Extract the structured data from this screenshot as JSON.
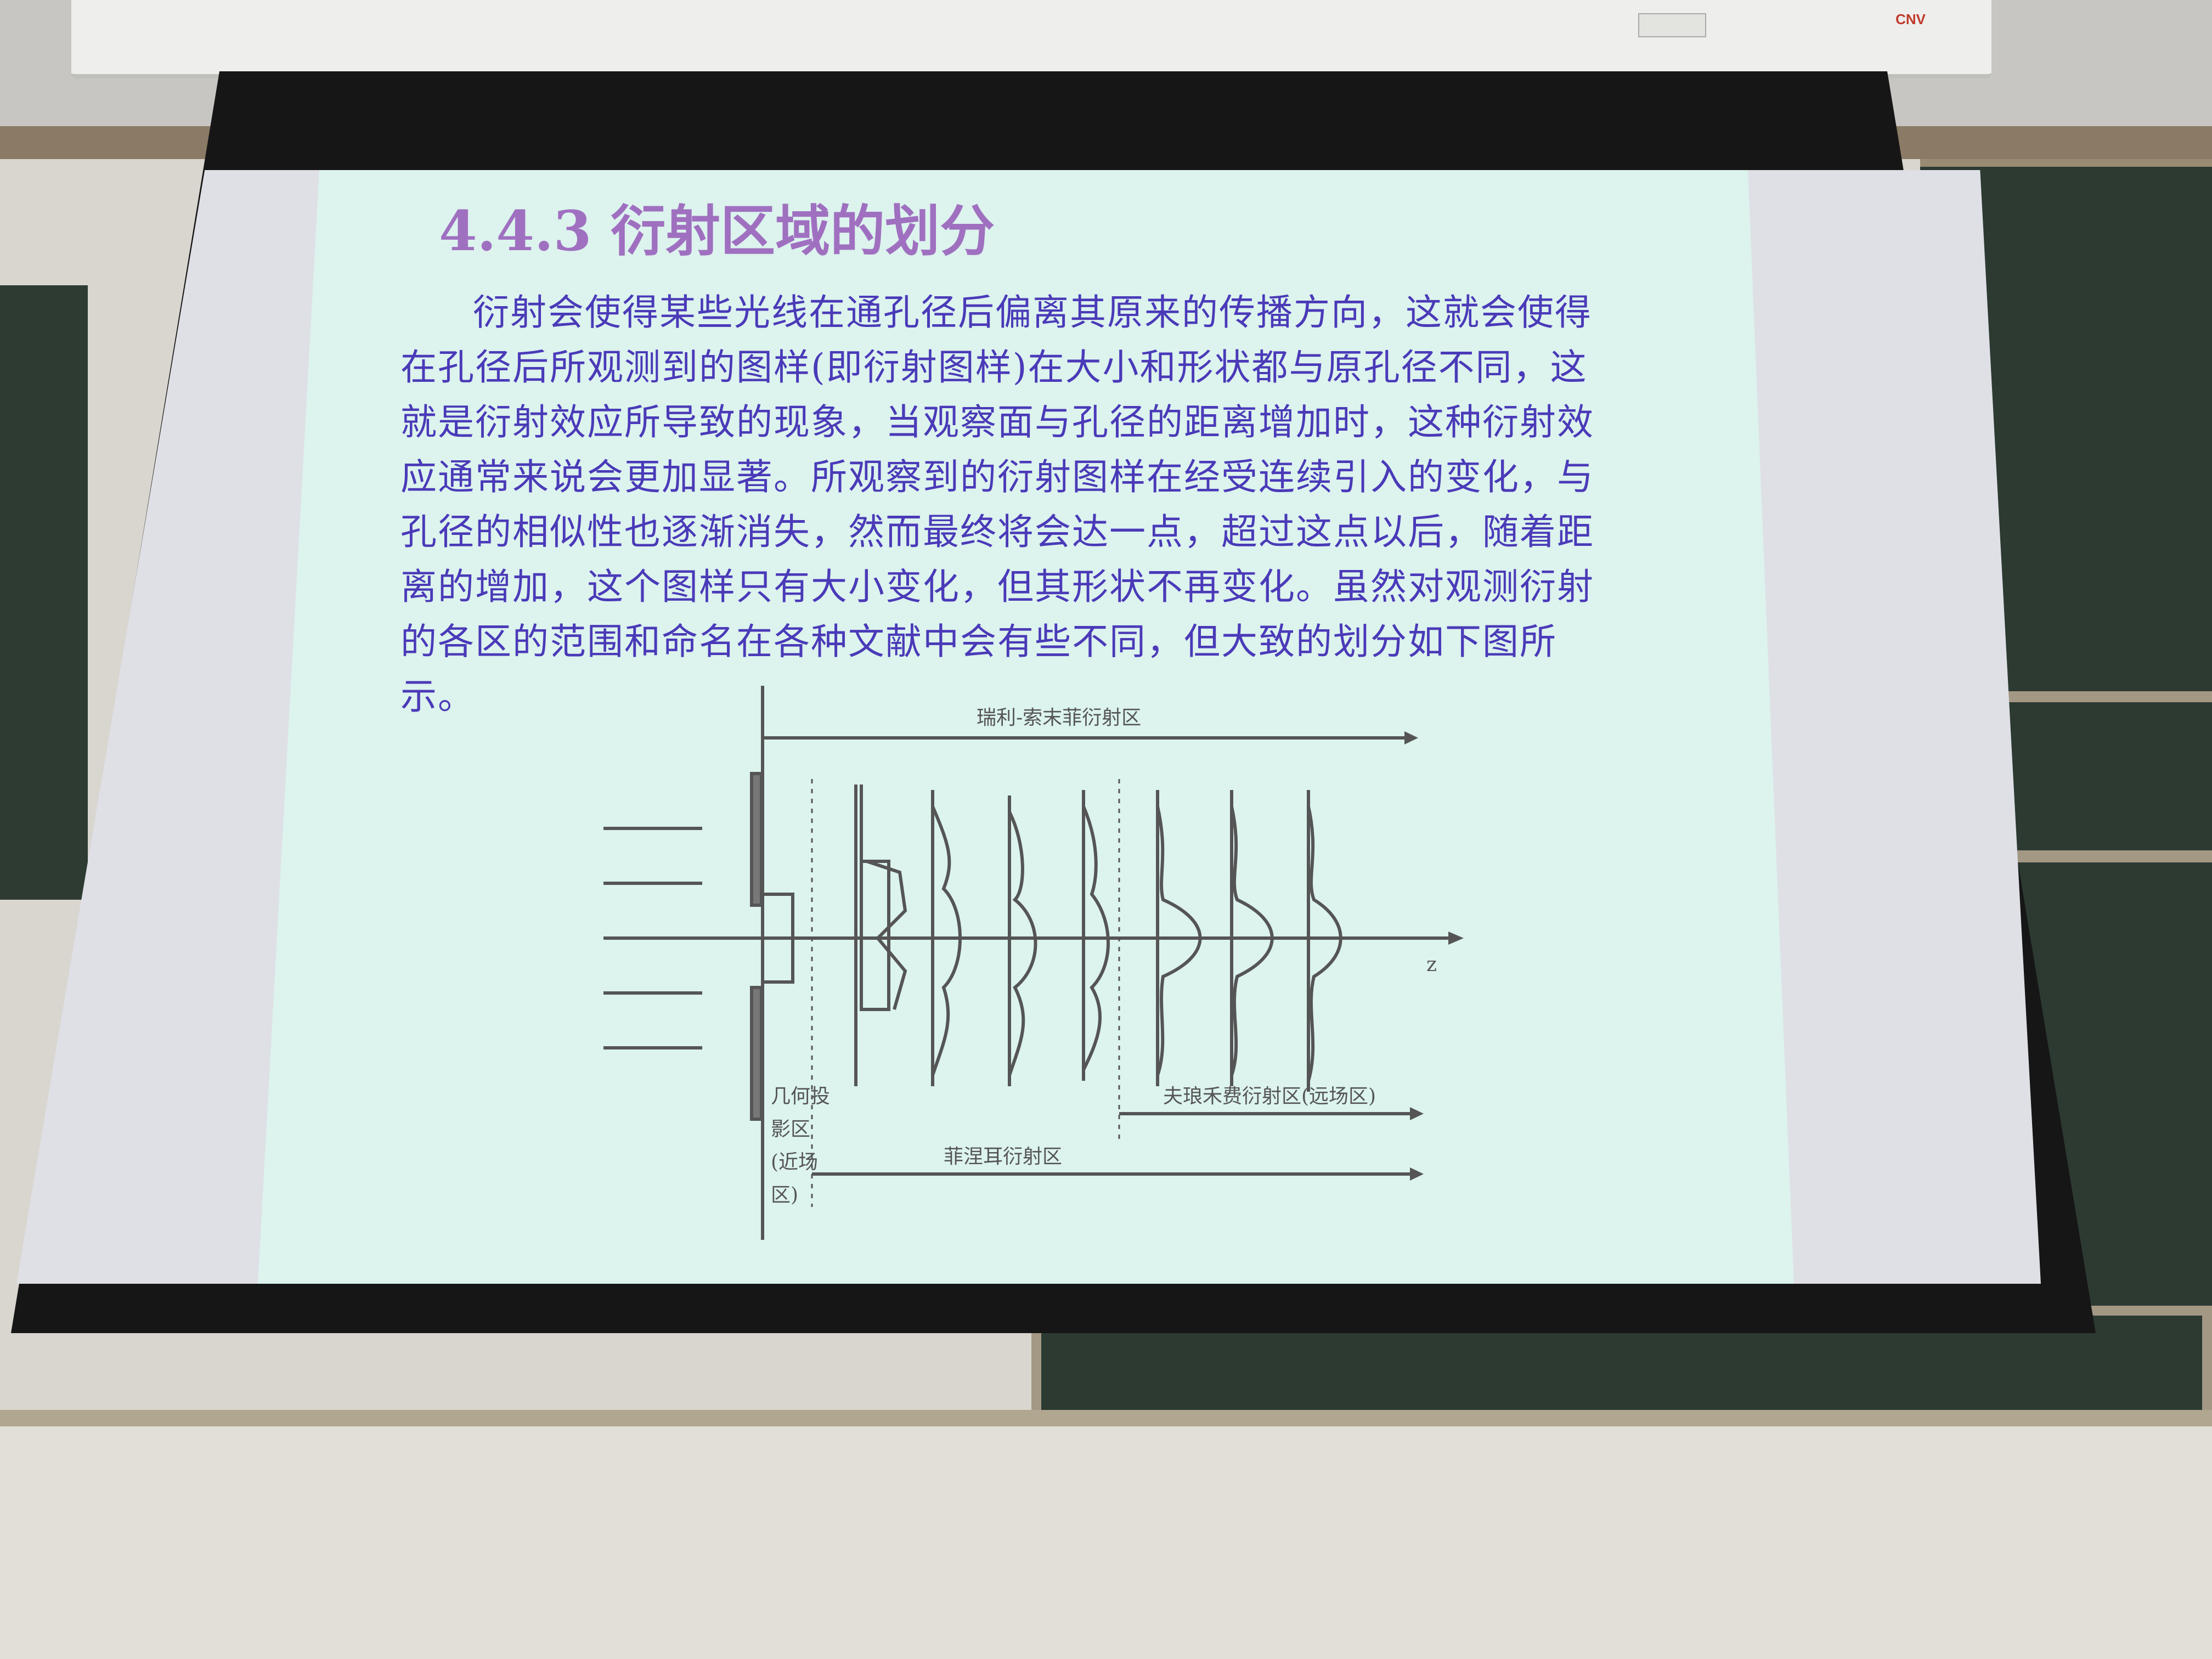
{
  "room": {
    "projector_brand": "CNV"
  },
  "slide": {
    "title": "4.4.3  衍射区域的划分",
    "body": "衍射会使得某些光线在通孔径后偏离其原来的传播方向，这就会使得在孔径后所观测到的图样(即衍射图样)在大小和形状都与原孔径不同，这就是衍射效应所导致的现象，当观察面与孔径的距离增加时，这种衍射效应通常来说会更加显著。所观察到的衍射图样在经受连续引入的变化，与孔径的相似性也逐渐消失，然而最终将会达一点，超过这点以后，随着距离的增加，这个图样只有大小变化，但其形状不再变化。虽然对观测衍射的各区的范围和命名在各种文献中会有些不同，但大致的划分如下图所示。",
    "diagram": {
      "top_label": "瑞利-索末菲衍射区",
      "axis_label": "z",
      "geo_label_lines": [
        "几何投",
        "影区",
        "(近场",
        "区)"
      ],
      "fraunhofer_label": "夫琅禾费衍射区(远场区)",
      "fresnel_label": "菲涅耳衍射区"
    }
  },
  "colors": {
    "title": "#a070c0",
    "body": "#4a3ab8",
    "slide_bg": "#dcf3ee",
    "diagram_ink": "#555555"
  }
}
